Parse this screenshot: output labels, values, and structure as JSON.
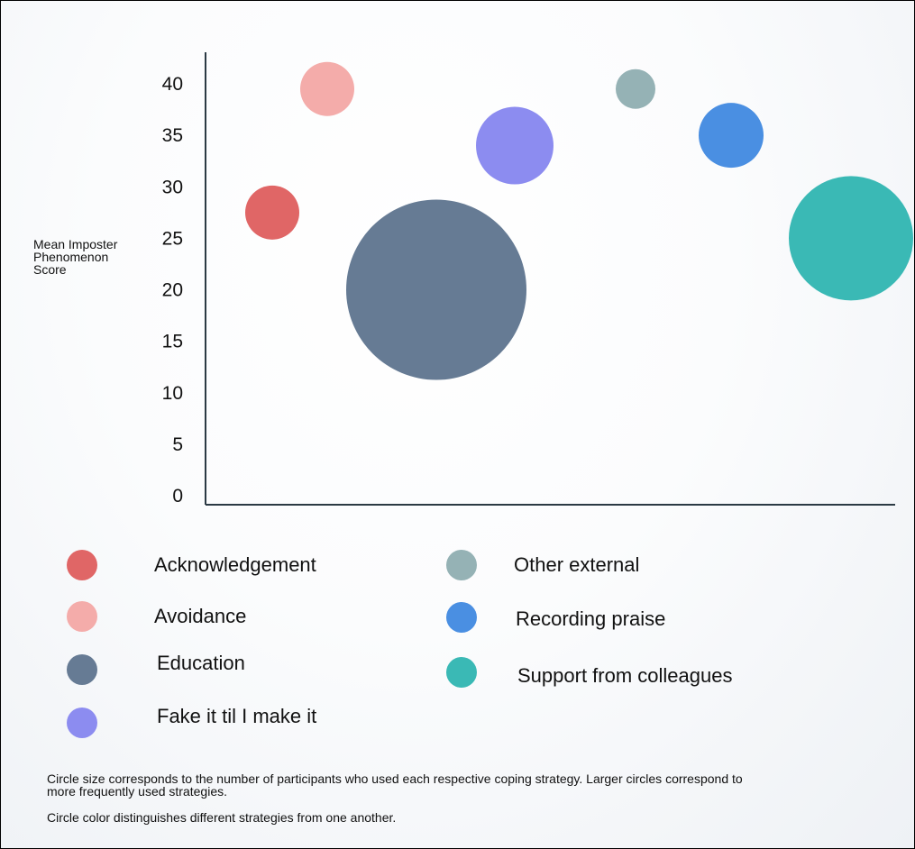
{
  "chart_data": {
    "type": "scatter",
    "ylabel": "Mean Imposter Phenomenon Score",
    "xlabel": "",
    "ylim": [
      0,
      40
    ],
    "yticks": [
      0,
      5,
      10,
      15,
      20,
      25,
      30,
      35,
      40
    ],
    "points": [
      {
        "name": "Acknowledgement",
        "x": 1,
        "y": 27.5,
        "size": 30,
        "color": "#e06666"
      },
      {
        "name": "Avoidance",
        "x": 2,
        "y": 39.5,
        "size": 30,
        "color": "#f4acaa"
      },
      {
        "name": "Education",
        "x": 3,
        "y": 20,
        "size": 100,
        "color": "#667b94"
      },
      {
        "name": "Fake it til I make it",
        "x": 4,
        "y": 34,
        "size": 43,
        "color": "#8c8cf0"
      },
      {
        "name": "Other external",
        "x": 5,
        "y": 39.5,
        "size": 22,
        "color": "#95b2b5"
      },
      {
        "name": "Recording praise",
        "x": 6,
        "y": 35,
        "size": 36,
        "color": "#4a8fe2"
      },
      {
        "name": "Support from colleagues",
        "x": 7,
        "y": 25,
        "size": 69,
        "color": "#3ab9b5"
      }
    ]
  },
  "legend": [
    {
      "label": "Acknowledgement",
      "color": "#e06666"
    },
    {
      "label": "Avoidance",
      "color": "#f4acaa"
    },
    {
      "label": "Education",
      "color": "#667b94"
    },
    {
      "label": "Fake it til I make it",
      "color": "#8c8cf0"
    },
    {
      "label": "Other external",
      "color": "#95b2b5"
    },
    {
      "label": "Recording praise",
      "color": "#4a8fe2"
    },
    {
      "label": "Support from colleagues",
      "color": "#3ab9b5"
    }
  ],
  "notes": {
    "size_note_line1": "Circle size corresponds to the number of participants who used each  respective coping strategy.  Larger circles correspond to",
    "size_note_line2": "more frequently used strategies.",
    "color_note": "Circle color distinguishes different strategies from one another."
  }
}
